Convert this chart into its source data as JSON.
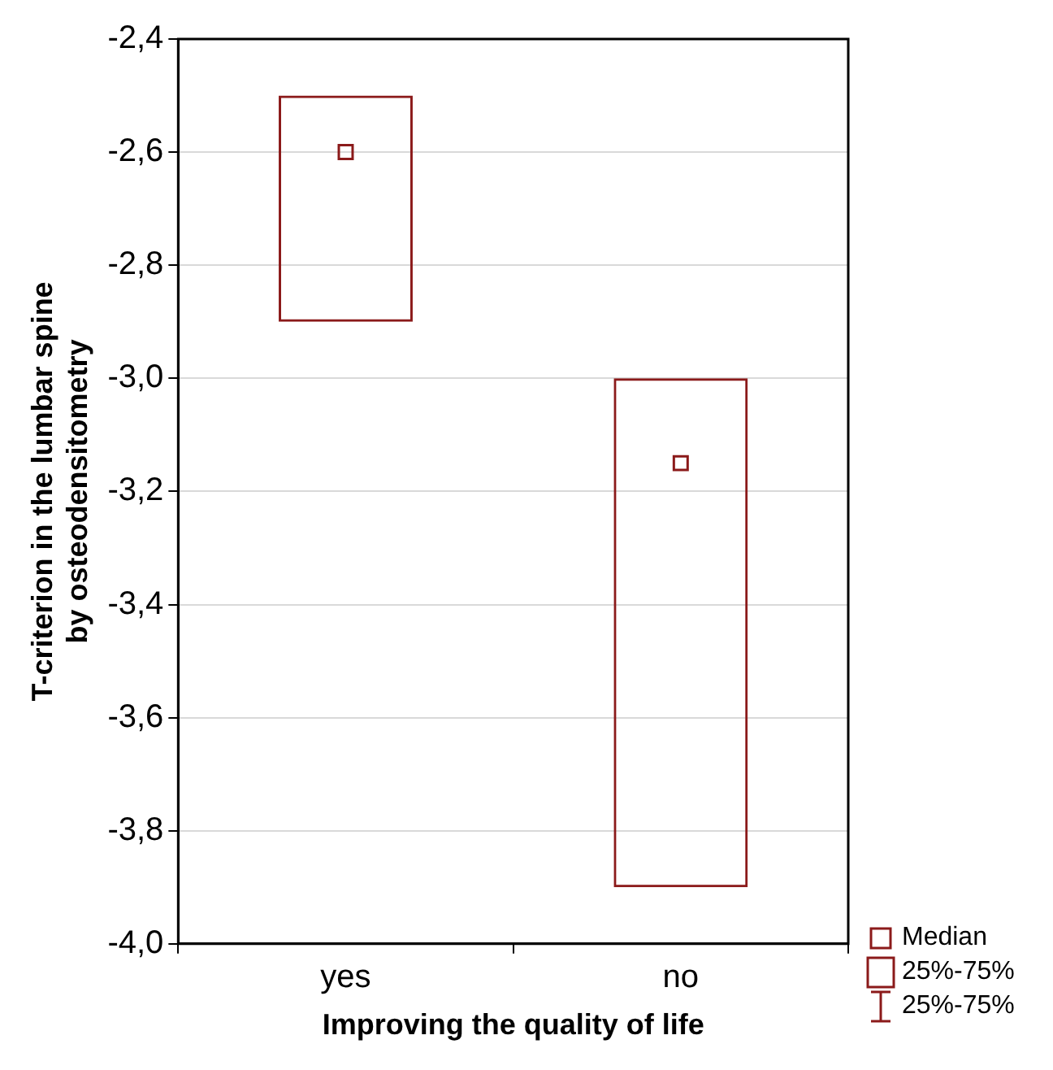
{
  "chart_data": {
    "type": "box",
    "xlabel": "Improving the quality of life",
    "ylabel": "T-criterion in the lumbar spine\nby osteodensitometry",
    "categories": [
      "yes",
      "no"
    ],
    "series": [
      {
        "color": "#8b1a1a",
        "boxes": [
          {
            "low": -2.9,
            "q1": -2.9,
            "median": -2.6,
            "q3": -2.5,
            "high": -2.5
          },
          {
            "low": -3.9,
            "q1": -3.9,
            "median": -3.15,
            "q3": -3.0,
            "high": -3.0
          }
        ]
      }
    ],
    "ylim": [
      -4.0,
      -2.4
    ],
    "yticks": [
      {
        "value": -4.0,
        "label": "-4,0"
      },
      {
        "value": -3.8,
        "label": "-3,8"
      },
      {
        "value": -3.6,
        "label": "-3,6"
      },
      {
        "value": -3.4,
        "label": "-3,4"
      },
      {
        "value": -3.2,
        "label": "-3,2"
      },
      {
        "value": -3.0,
        "label": "-3,0"
      },
      {
        "value": -2.8,
        "label": "-2,8"
      },
      {
        "value": -2.6,
        "label": "-2,6"
      },
      {
        "value": -2.4,
        "label": "-2,4"
      }
    ],
    "grid": "y",
    "annotations": [
      "Median",
      "25%-75%",
      "25%-75%"
    ]
  }
}
